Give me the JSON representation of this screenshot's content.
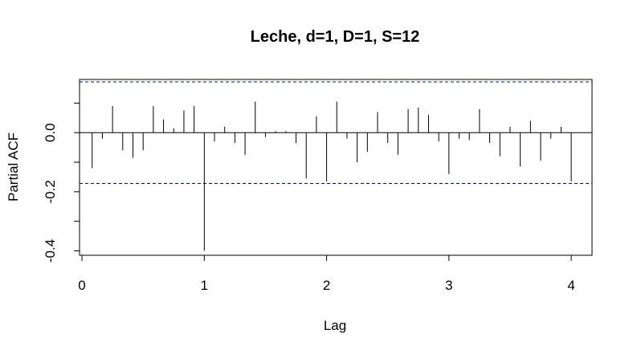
{
  "chart_data": {
    "type": "bar",
    "title": "Leche, d=1, D=1, S=12",
    "xlabel": "Lag",
    "ylabel": "Partial ACF",
    "xlim": [
      -0.02,
      4.17
    ],
    "ylim": [
      -0.415,
      0.18
    ],
    "x_ticks": [
      0,
      1,
      2,
      3,
      4
    ],
    "y_ticks": [
      -0.4,
      -0.2,
      0.0
    ],
    "y_tick_labels": [
      "-0.4",
      "-0.2",
      "0.0"
    ],
    "y_minor_ticks": [
      -0.3,
      -0.1,
      0.1
    ],
    "confidence_limit": 0.172,
    "confidence_color": "#0000cd",
    "series": [
      {
        "x": [
          0.0833,
          0.1667,
          0.25,
          0.3333,
          0.4167,
          0.5,
          0.5833,
          0.6667,
          0.75,
          0.8333,
          0.9167,
          1.0,
          1.0833,
          1.1667,
          1.25,
          1.3333,
          1.4167,
          1.5,
          1.5833,
          1.6667,
          1.75,
          1.8333,
          1.9167,
          2.0,
          2.0833,
          2.1667,
          2.25,
          2.3333,
          2.4167,
          2.5,
          2.5833,
          2.6667,
          2.75,
          2.8333,
          2.9167,
          3.0,
          3.0833,
          3.1667,
          3.25,
          3.3333,
          3.4167,
          3.5,
          3.5833,
          3.6667,
          3.75,
          3.8333,
          3.9167,
          4.0
        ],
        "values": [
          -0.12,
          -0.02,
          0.09,
          -0.06,
          -0.085,
          -0.06,
          0.09,
          0.045,
          0.015,
          0.075,
          0.09,
          -0.4,
          -0.03,
          0.02,
          -0.035,
          -0.075,
          0.105,
          -0.015,
          0.005,
          0.005,
          -0.035,
          -0.155,
          0.055,
          -0.165,
          0.105,
          -0.02,
          -0.1,
          -0.065,
          0.07,
          -0.035,
          -0.075,
          0.08,
          0.085,
          0.06,
          -0.03,
          -0.14,
          -0.02,
          -0.025,
          0.08,
          -0.035,
          -0.08,
          0.02,
          -0.115,
          0.04,
          -0.095,
          -0.02,
          0.02,
          -0.165
        ]
      }
    ]
  }
}
